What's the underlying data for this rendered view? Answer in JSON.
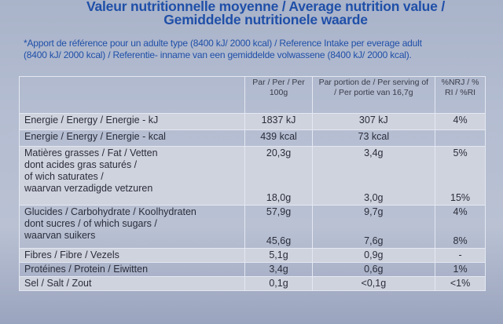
{
  "heading": {
    "line1": "Valeur nutritionnelle moyenne / Average nutrition value /",
    "line2": "Gemiddelde nutritionele waarde"
  },
  "reference_note": {
    "line1": "*Apport de référence pour un adulte type (8400 kJ/ 2000 kcal) / Reference Intake per everage adult",
    "line2": "(8400 kJ/ 2000 kcal) / Referentie- inname van een gemiddelde volwassene (8400 kJ/ 2000 kcal)."
  },
  "columns": {
    "per100": "Par / Per / Per 100g",
    "portion": "Par portion de / Per serving of / Per portie van 16,7g",
    "ri": "%NRJ / % RI / %RI"
  },
  "rows": [
    {
      "label": "Energie / Energy / Energie - kJ",
      "per100": "1837 kJ",
      "portion": "307 kJ",
      "ri": "4%"
    },
    {
      "label": "Energie / Energy / Energie - kcal",
      "per100": "439 kcal",
      "portion": "73 kcal",
      "ri": ""
    },
    {
      "label": "Matières grasses / Fat / Vetten",
      "per100": "20,3g",
      "portion": "3,4g",
      "ri": "5%"
    },
    {
      "label": "dont acides gras saturés / of wich saturates / waarvan verzadigde vetzuren",
      "per100": "18,0g",
      "portion": "3,0g",
      "ri": "15%"
    },
    {
      "label": "Glucides / Carbohydrate / Koolhydraten",
      "per100": "57,9g",
      "portion": "9,7g",
      "ri": "4%"
    },
    {
      "label": "dont sucres / of which sugars / waarvan suikers",
      "per100": "45,6g",
      "portion": "7,6g",
      "ri": "8%"
    },
    {
      "label": "Fibres / Fibre / Vezels",
      "per100": "5,1g",
      "portion": "0,9g",
      "ri": "-"
    },
    {
      "label": "Protéines / Protein / Eiwitten",
      "per100": "3,4g",
      "portion": "0,6g",
      "ri": "1%"
    },
    {
      "label": "Sel / Salt / Zout",
      "per100": "0,1g",
      "portion": "<0,1g",
      "ri": "<1%"
    }
  ],
  "sublines": {
    "sat1": "dont acides gras saturés /",
    "sat2": "of wich saturates /",
    "sat3": "waarvan verzadigde vetzuren",
    "sug1": "dont sucres / of which sugars /",
    "sug2": "waarvan suikers"
  }
}
